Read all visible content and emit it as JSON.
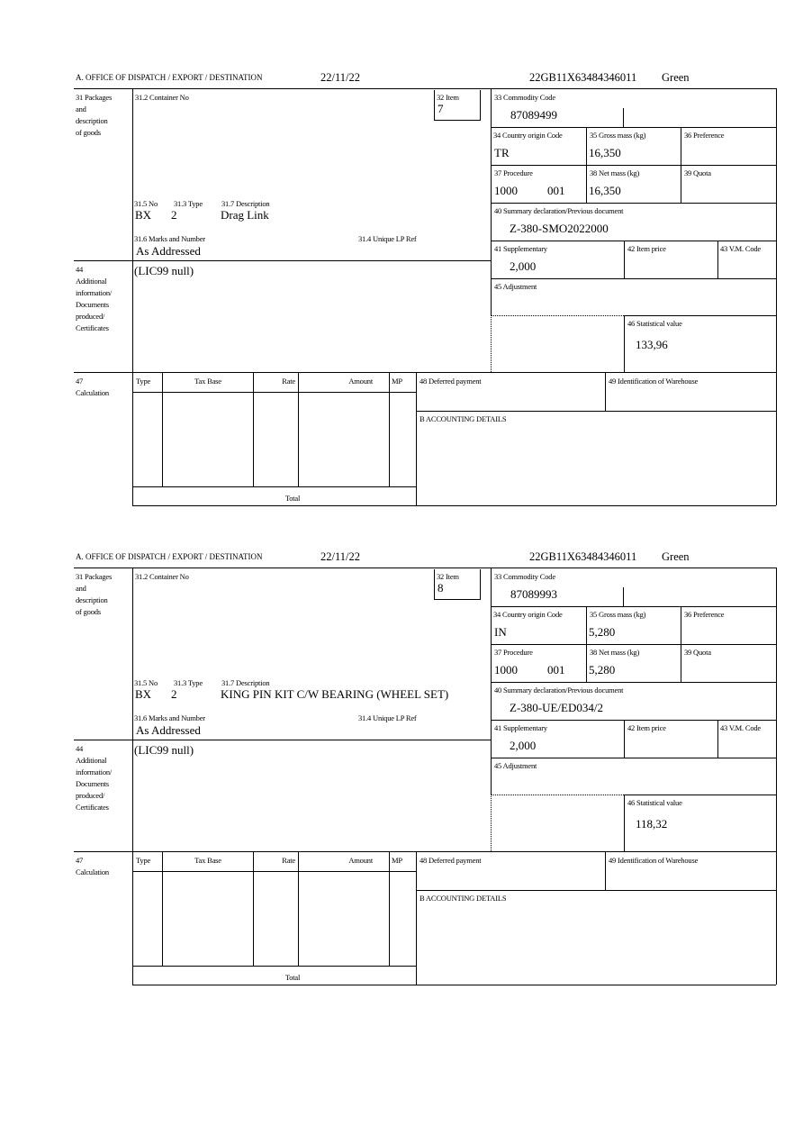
{
  "labels": {
    "office": "A.  OFFICE OF DISPATCH / EXPORT / DESTINATION",
    "l31": [
      "31 Packages",
      "and",
      "description",
      "of goods"
    ],
    "l31_2": "31.2 Container No",
    "l32": "32 Item",
    "l31_5": "31.5 No",
    "l31_3": "31.3 Type",
    "l31_7": "31.7 Description",
    "l31_6": "31.6 Marks and Number",
    "l31_4": "31.4 Unique LP Ref",
    "l44": [
      "44",
      "Additional",
      "information/",
      "Documents",
      "produced/",
      "Certificates"
    ],
    "l33": "33 Commodity Code",
    "l34": "34 Country origin Code",
    "l35": "35 Gross mass (kg)",
    "l36": "36 Preference",
    "l37": "37 Procedure",
    "l38": "38 Net mass (kg)",
    "l39": "39 Quota",
    "l40": "40 Summary declaration/Previous document",
    "l41": "41 Supplementary",
    "l42": "42 Item price",
    "l43": "43 V.M. Code",
    "l45": "45 Adjustment",
    "l46": "46 Statistical value",
    "l47": [
      "47",
      "Calculation"
    ],
    "calc_cols": [
      "Type",
      "Tax Base",
      "Rate",
      "Amount",
      "MP"
    ],
    "total": "Total",
    "l48": "48 Deferred payment",
    "l49": "49 Identification of Warehouse",
    "lB": "B ACCOUNTING DETAILS"
  },
  "forms": [
    {
      "date": "22/11/22",
      "reference": "22GB11X63484346011",
      "route": "Green",
      "item": "7",
      "package_kind": "BX",
      "package_count": "2",
      "description": "Drag Link",
      "marks": "As Addressed",
      "additional_info": "(LIC99 null)",
      "commodity_code": "87089499",
      "origin": "TR",
      "gross_mass": "16,350",
      "procedure": "1000",
      "procedure_extra": "001",
      "net_mass": "16,350",
      "previous_document": "Z-380-SMO2022000",
      "supplementary": "2,000",
      "statistical_value": "133,96"
    },
    {
      "date": "22/11/22",
      "reference": "22GB11X63484346011",
      "route": "Green",
      "item": "8",
      "package_kind": "BX",
      "package_count": "2",
      "description": "KING PIN KIT C/W BEARING (WHEEL SET)",
      "marks": "As Addressed",
      "additional_info": "(LIC99 null)",
      "commodity_code": "87089993",
      "origin": "IN",
      "gross_mass": "5,280",
      "procedure": "1000",
      "procedure_extra": "001",
      "net_mass": "5,280",
      "previous_document": "Z-380-UE/ED034/2",
      "supplementary": "2,000",
      "statistical_value": "118,32"
    }
  ]
}
